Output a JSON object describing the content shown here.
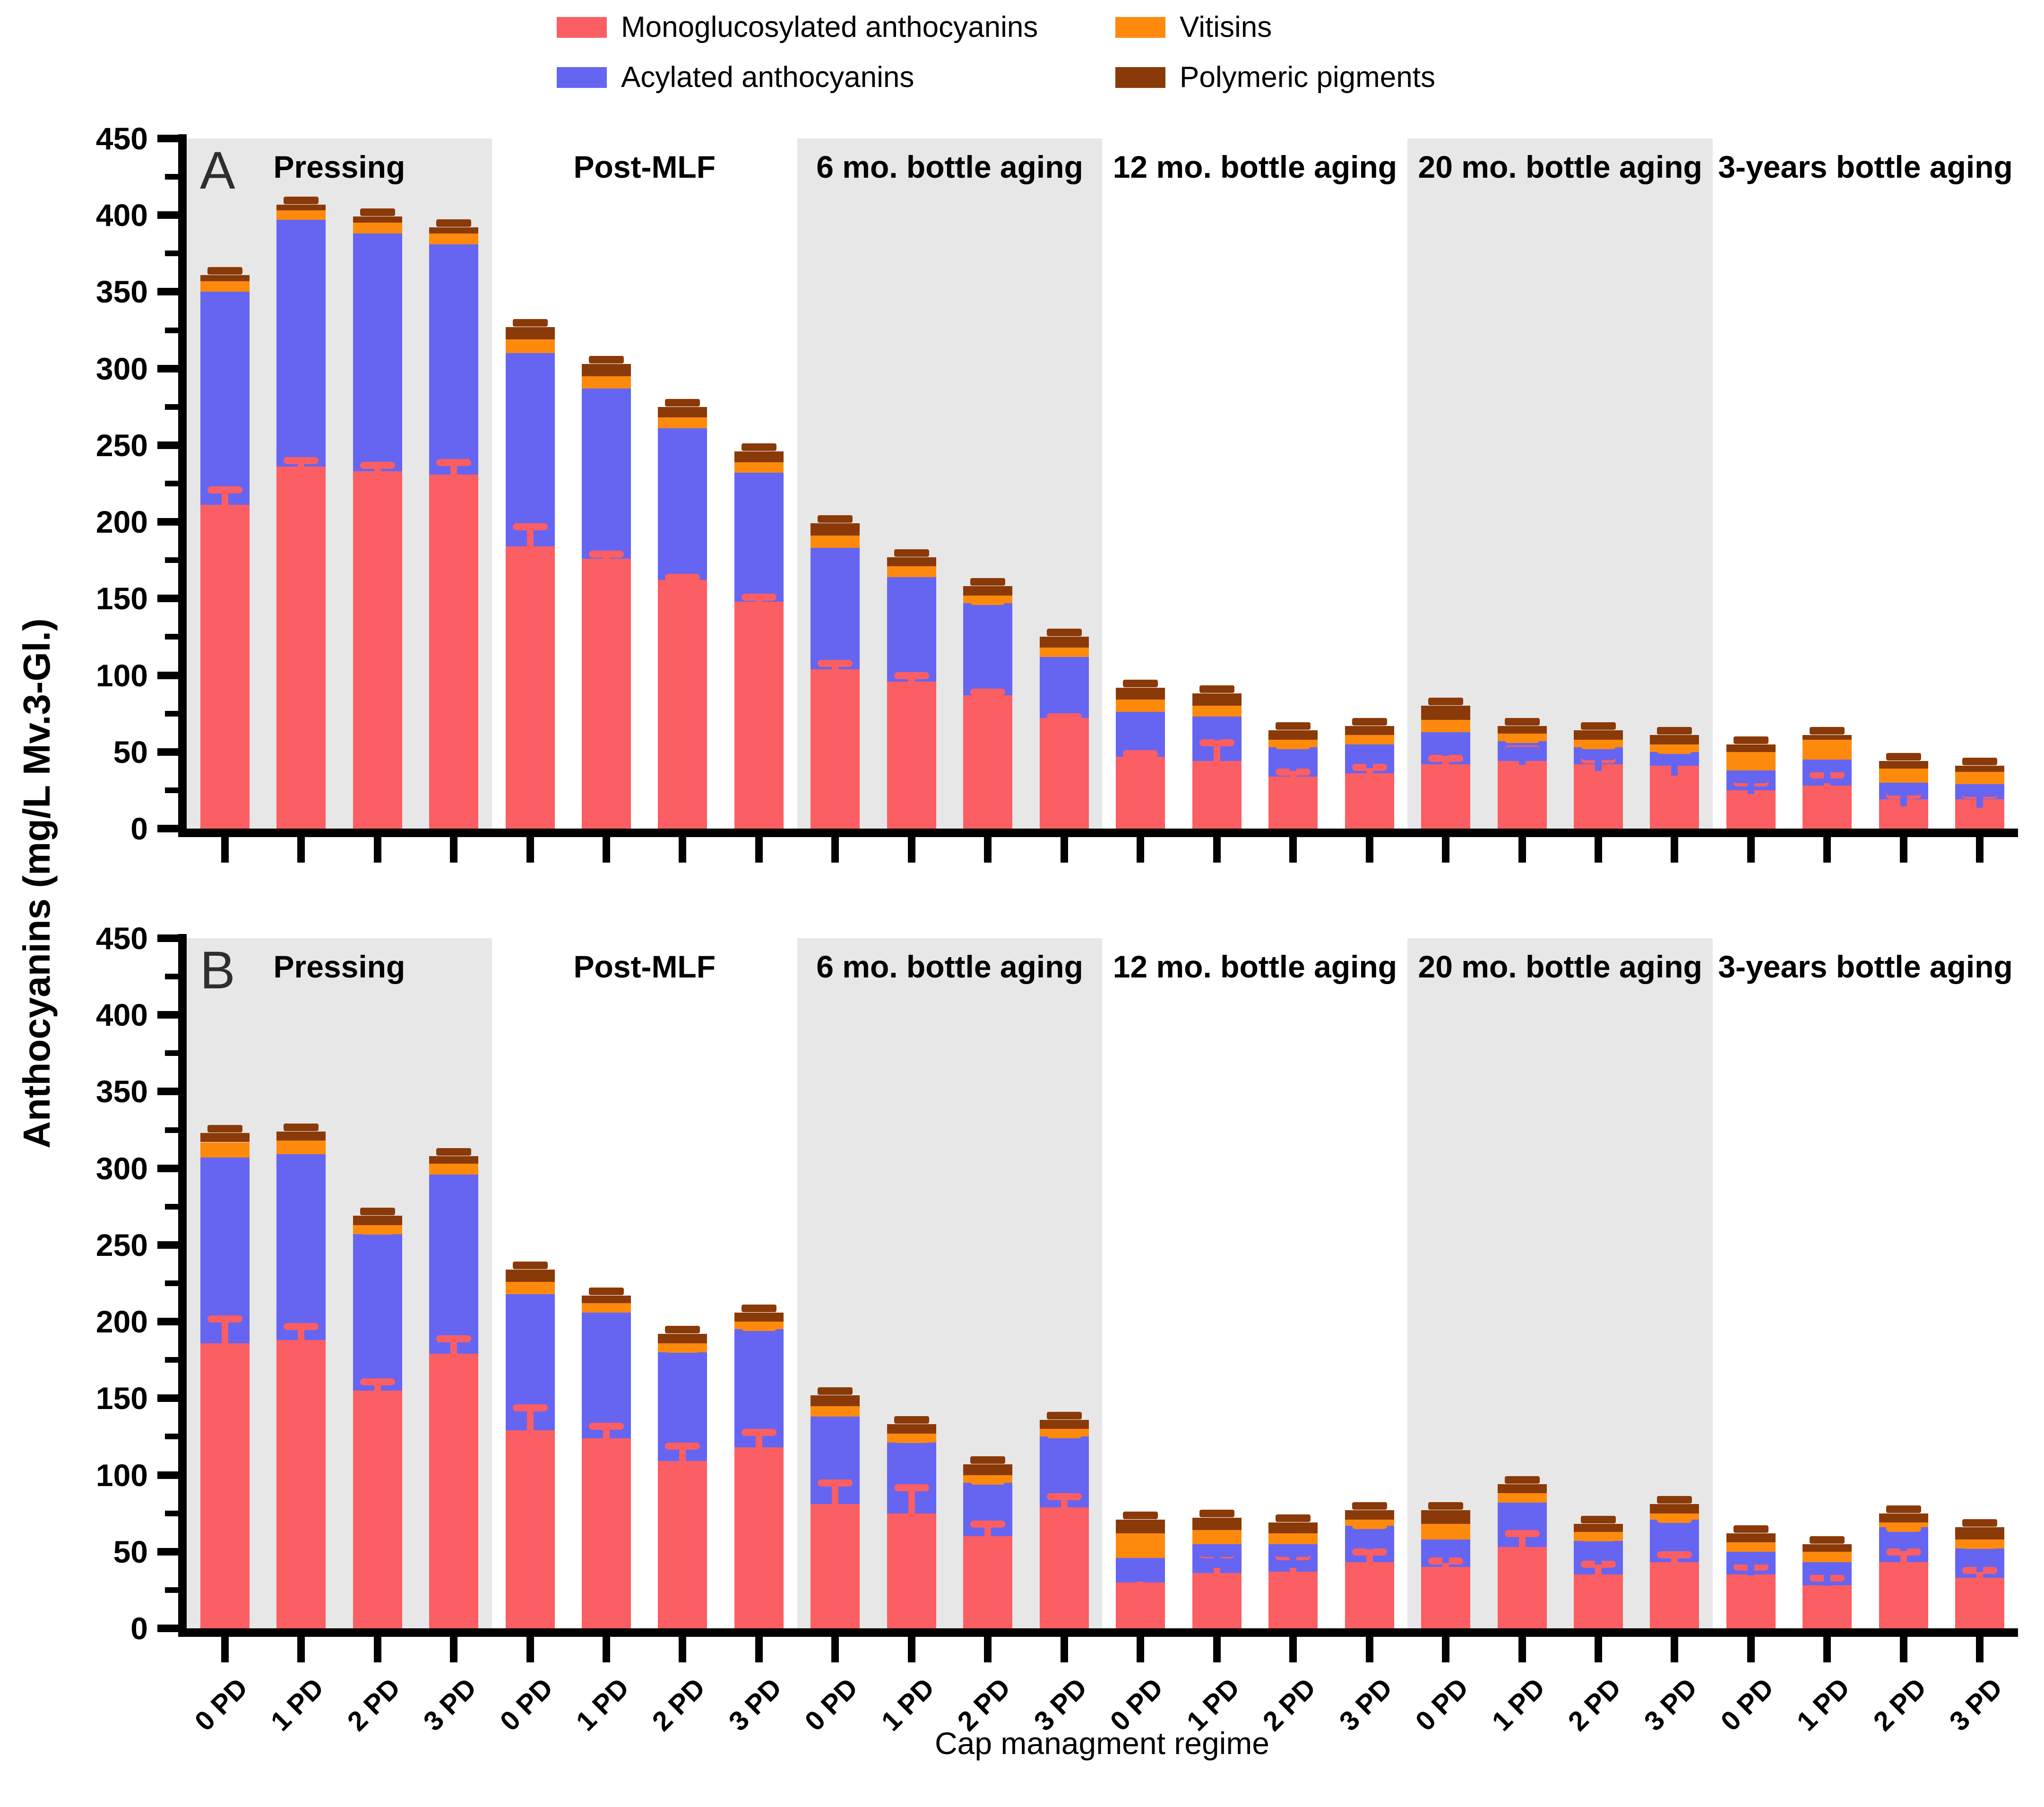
{
  "figure": {
    "y_axis_title": "Anthocyanins (mg/L Mv.3-Gl.)",
    "x_axis_title": "Cap managment regime",
    "panel_labels": [
      "A",
      "B"
    ],
    "groups": [
      "Pressing",
      "Post-MLF",
      "6 mo. bottle aging",
      "12 mo. bottle aging",
      "20 mo. bottle aging",
      "3-years bottle aging"
    ],
    "pd_labels": [
      "0 PD",
      "1 PD",
      "2 PD",
      "3 PD"
    ],
    "shaded_groups": [
      0,
      2,
      4
    ],
    "y_ticks": [
      0,
      50,
      100,
      150,
      200,
      250,
      300,
      350,
      400,
      450
    ],
    "band_color": "#e7e7e7"
  },
  "legend": {
    "items": [
      {
        "label": "Monoglucosylated anthocyanins",
        "color": "#fb5e63"
      },
      {
        "label": "Acylated anthocyanins",
        "color": "#6565f1"
      },
      {
        "label": "Vitisins",
        "color": "#fe8a0d"
      },
      {
        "label": "Polymeric pigments",
        "color": "#8a3a08"
      }
    ]
  },
  "chart_data": [
    {
      "panel": "A",
      "type": "bar",
      "stacked": true,
      "ylim": [
        0,
        450
      ],
      "ylabel": "Anthocyanins (mg/L Mv.3-Gl.)",
      "xlabel": "Cap managment regime",
      "grid": false,
      "legend_position": "top",
      "group_labels": [
        "Pressing",
        "Post-MLF",
        "6 mo. bottle aging",
        "12 mo. bottle aging",
        "20 mo. bottle aging",
        "3-years bottle aging"
      ],
      "categories": [
        "0 PD",
        "1 PD",
        "2 PD",
        "3 PD",
        "0 PD",
        "1 PD",
        "2 PD",
        "3 PD",
        "0 PD",
        "1 PD",
        "2 PD",
        "3 PD",
        "0 PD",
        "1 PD",
        "2 PD",
        "3 PD",
        "0 PD",
        "1 PD",
        "2 PD",
        "3 PD",
        "0 PD",
        "1 PD",
        "2 PD",
        "3 PD"
      ],
      "series": [
        {
          "name": "Monoglucosylated anthocyanins",
          "color": "#fb5e63",
          "values": [
            211,
            236,
            233,
            231,
            184,
            176,
            162,
            148,
            104,
            96,
            87,
            72,
            47,
            44,
            34,
            36,
            42,
            44,
            42,
            41,
            25,
            28,
            19,
            19
          ]
        },
        {
          "name": "Acylated anthocyanins",
          "color": "#6565f1",
          "values": [
            139,
            161,
            155,
            150,
            126,
            111,
            99,
            84,
            79,
            68,
            60,
            40,
            29,
            29,
            19,
            19,
            21,
            13,
            11,
            9,
            13,
            17,
            11,
            10
          ]
        },
        {
          "name": "Vitisins",
          "color": "#fe8a0d",
          "values": [
            7,
            6,
            7,
            7,
            9,
            8,
            7,
            7,
            8,
            7,
            5,
            6,
            8,
            7,
            5,
            6,
            8,
            5,
            5,
            5,
            12,
            13,
            9,
            8
          ]
        },
        {
          "name": "Polymeric pigments",
          "color": "#8a3a08",
          "values": [
            4,
            4,
            4,
            4,
            8,
            8,
            7,
            7,
            8,
            6,
            6,
            7,
            8,
            8,
            6,
            6,
            9,
            5,
            6,
            6,
            5,
            3,
            5,
            4
          ]
        }
      ],
      "mono_error_tops": [
        221,
        240,
        237,
        239,
        197,
        179,
        164,
        151,
        108,
        100,
        89,
        73,
        49,
        56,
        37,
        40,
        46,
        52,
        45,
        44,
        30,
        35,
        22,
        22
      ]
    },
    {
      "panel": "B",
      "type": "bar",
      "stacked": true,
      "ylim": [
        0,
        450
      ],
      "ylabel": "Anthocyanins (mg/L Mv.3-Gl.)",
      "xlabel": "Cap managment regime",
      "grid": false,
      "legend_position": "top",
      "group_labels": [
        "Pressing",
        "Post-MLF",
        "6 mo. bottle aging",
        "12 mo. bottle aging",
        "20 mo. bottle aging",
        "3-years bottle aging"
      ],
      "categories": [
        "0 PD",
        "1 PD",
        "2 PD",
        "3 PD",
        "0 PD",
        "1 PD",
        "2 PD",
        "3 PD",
        "0 PD",
        "1 PD",
        "2 PD",
        "3 PD",
        "0 PD",
        "1 PD",
        "2 PD",
        "3 PD",
        "0 PD",
        "1 PD",
        "2 PD",
        "3 PD",
        "0 PD",
        "1 PD",
        "2 PD",
        "3 PD"
      ],
      "series": [
        {
          "name": "Monoglucosylated anthocyanins",
          "color": "#fb5e63",
          "values": [
            186,
            188,
            155,
            179,
            129,
            124,
            109,
            118,
            81,
            75,
            60,
            79,
            30,
            36,
            37,
            43,
            40,
            53,
            35,
            43,
            35,
            28,
            43,
            33
          ]
        },
        {
          "name": "Acylated anthocyanins",
          "color": "#6565f1",
          "values": [
            121,
            121,
            102,
            117,
            89,
            82,
            71,
            77,
            57,
            46,
            35,
            46,
            16,
            19,
            18,
            24,
            18,
            29,
            22,
            28,
            15,
            15,
            23,
            19
          ]
        },
        {
          "name": "Vitisins",
          "color": "#fe8a0d",
          "values": [
            10,
            9,
            6,
            7,
            8,
            6,
            6,
            5,
            7,
            6,
            5,
            5,
            16,
            9,
            7,
            4,
            10,
            6,
            6,
            4,
            6,
            7,
            3,
            6
          ]
        },
        {
          "name": "Polymeric pigments",
          "color": "#8a3a08",
          "values": [
            6,
            6,
            6,
            5,
            8,
            5,
            6,
            6,
            7,
            6,
            7,
            6,
            9,
            8,
            7,
            6,
            9,
            6,
            5,
            6,
            6,
            5,
            6,
            8
          ]
        }
      ],
      "mono_error_tops": [
        202,
        197,
        161,
        189,
        144,
        132,
        119,
        128,
        95,
        92,
        68,
        86,
        40,
        48,
        47,
        50,
        44,
        62,
        42,
        48,
        40,
        33,
        50,
        38
      ]
    }
  ]
}
